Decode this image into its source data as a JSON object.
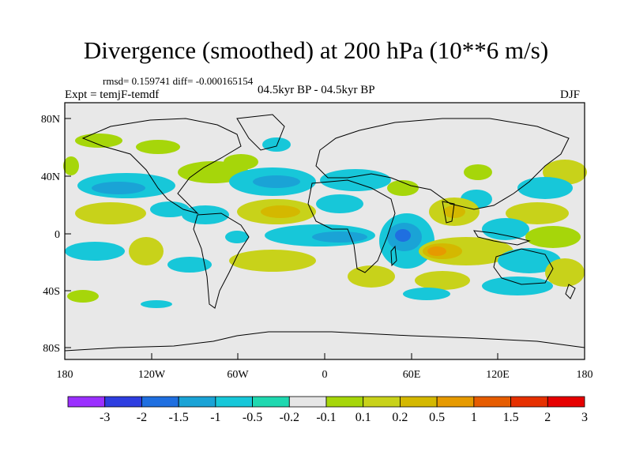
{
  "title": "Divergence (smoothed) at 200 hPa (10**6 m/s)",
  "stats_line": "rmsd= 0.159741 diff= -0.000165154",
  "experiment": "Expt = temjF-temdf",
  "period": "04.5kyr BP - 04.5kyr BP",
  "season": "DJF",
  "map": {
    "background_color": "#e8e8e8",
    "y_tick_labels": [
      "80N",
      "40N",
      "0",
      "40S",
      "80S"
    ],
    "x_tick_labels": [
      "180",
      "120W",
      "60W",
      "0",
      "60E",
      "120E",
      "180"
    ]
  },
  "colorbar": {
    "colors": [
      "#9b30ff",
      "#2e3ee0",
      "#1f6fe0",
      "#1aa3d6",
      "#17c7d9",
      "#1fd8b0",
      "#e6e6e6",
      "#a6d60a",
      "#c8d21a",
      "#d4b800",
      "#e69a00",
      "#e65c00",
      "#e63000",
      "#e60000"
    ],
    "labels": [
      "-3",
      "-2",
      "-1.5",
      "-1",
      "-0.5",
      "-0.2",
      "-0.1",
      "0.1",
      "0.2",
      "0.5",
      "1",
      "1.5",
      "2",
      "3"
    ]
  }
}
